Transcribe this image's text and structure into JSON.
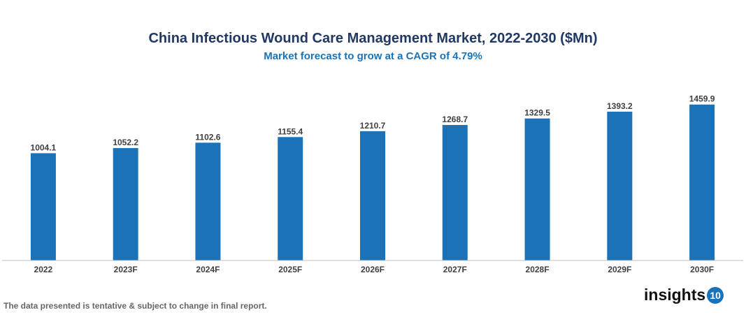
{
  "chart_data": {
    "type": "bar",
    "title": "China Infectious Wound Care Management Market, 2022-2030 ($Mn)",
    "subtitle": "Market forecast to grow at a CAGR of 4.79%",
    "categories": [
      "2022",
      "2023F",
      "2024F",
      "2025F",
      "2026F",
      "2027F",
      "2028F",
      "2029F",
      "2030F"
    ],
    "values": [
      1004.1,
      1052.2,
      1102.6,
      1155.4,
      1210.7,
      1268.7,
      1329.5,
      1393.2,
      1459.9
    ],
    "labels": [
      "1004.1",
      "1052.2",
      "1102.6",
      "1155.4",
      "1210.7",
      "1268.7",
      "1329.5",
      "1393.2",
      "1459.9"
    ],
    "xlabel": "",
    "ylabel": "",
    "ylim": [
      0,
      1700
    ],
    "grid": false,
    "bar_color": "#1a73b8"
  },
  "footer": {
    "note": "The data presented is tentative & subject to change in final report."
  },
  "logo": {
    "text": "insights",
    "badge": "10"
  }
}
